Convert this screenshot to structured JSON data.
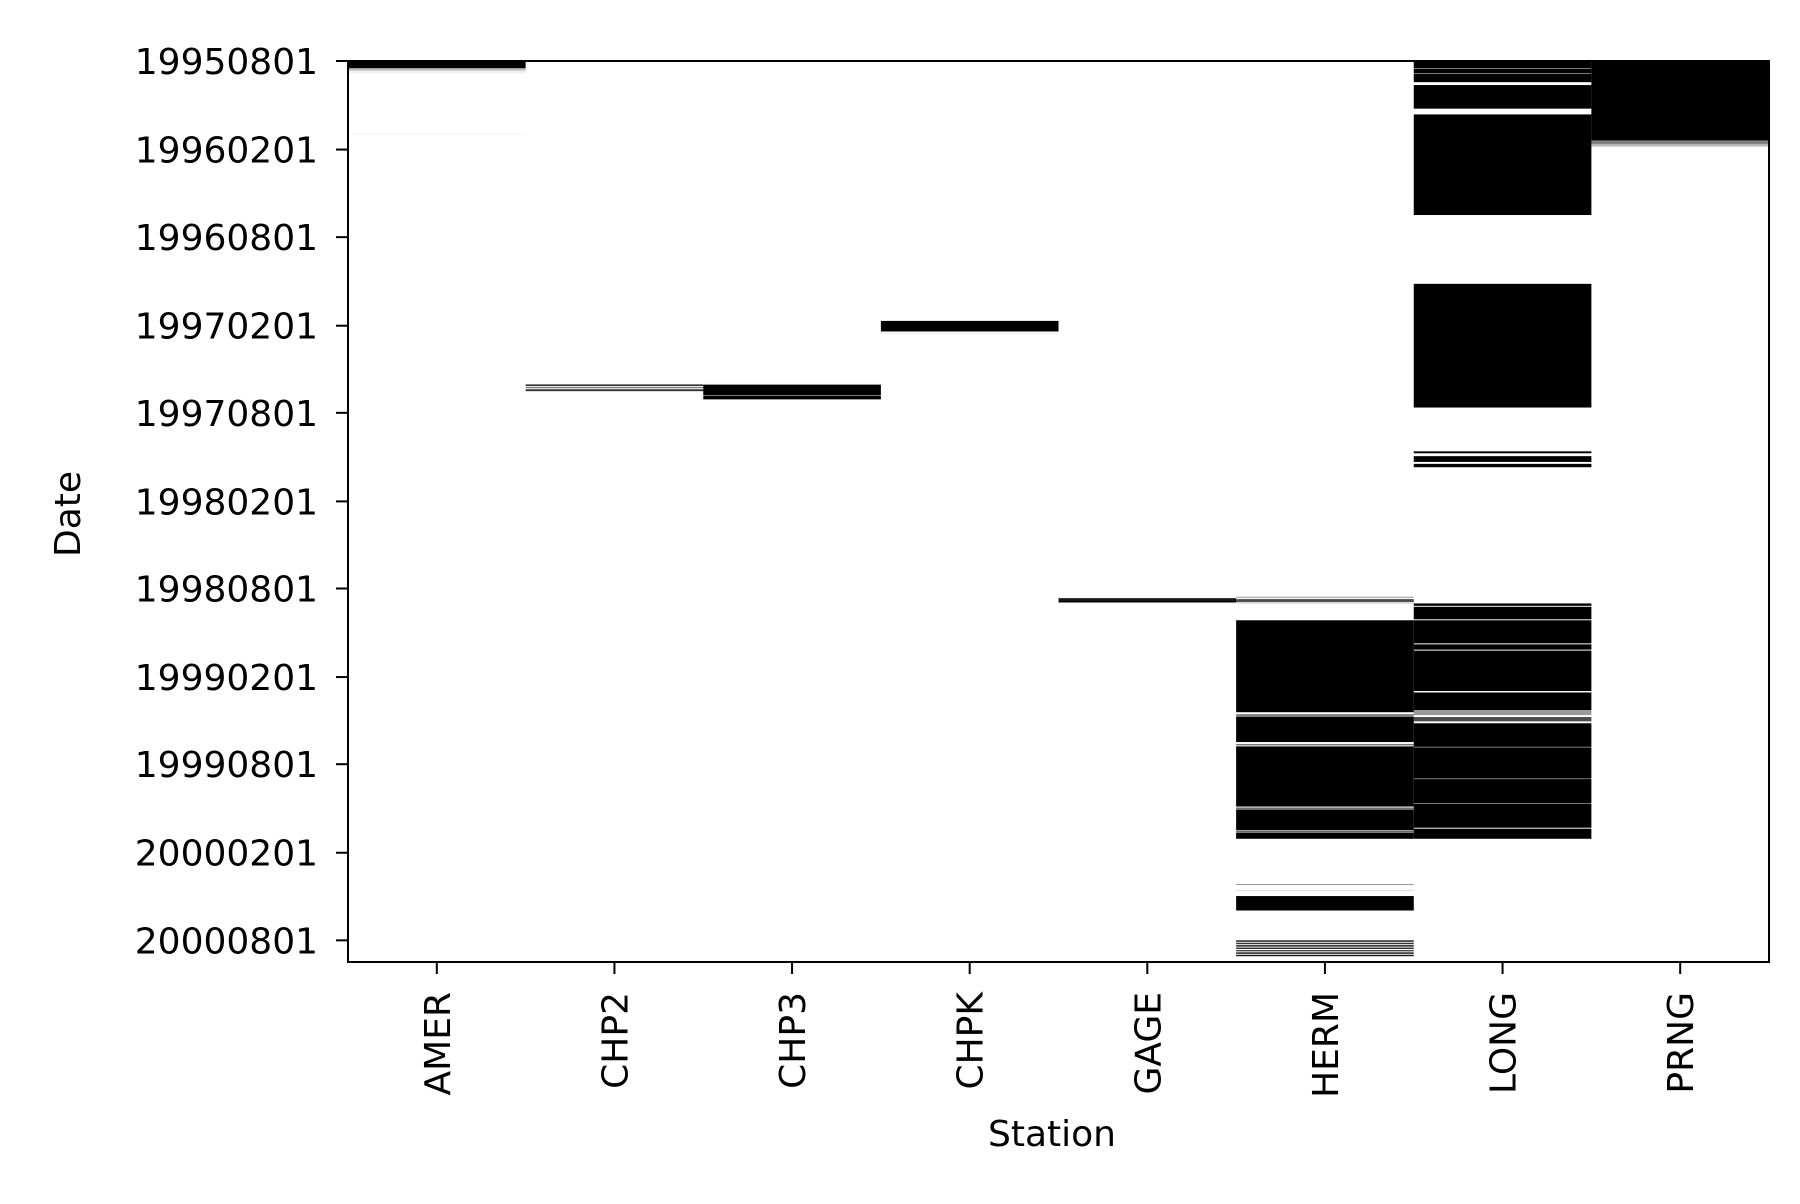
{
  "chart_data": {
    "type": "heatmap",
    "title": "",
    "xlabel": "Station",
    "ylabel": "Date",
    "categories": [
      "AMER",
      "CHP2",
      "CHP3",
      "CHPK",
      "GAGE",
      "HERM",
      "LONG",
      "PRNG"
    ],
    "y_ticks": [
      "19950801",
      "19960201",
      "19960801",
      "19970201",
      "19970801",
      "19980201",
      "19980801",
      "19990201",
      "19990801",
      "20000201",
      "20000801"
    ],
    "ylim": [
      "19950801",
      "20000915"
    ],
    "y_inverted": true,
    "grid": false,
    "legend": "none",
    "colors": {
      "present": "#000000",
      "absent": "#ffffff",
      "axis": "#000000"
    },
    "description_of_values": "black = data present for the station on that date",
    "series": [
      {
        "station": "AMER",
        "segments": [
          [
            "19950801",
            "19950815",
            1.0
          ],
          [
            "19950816",
            "19950820",
            0.25
          ],
          [
            "19950821",
            "19950826",
            0.06
          ],
          [
            "19951230",
            "19951231",
            0.04
          ]
        ]
      },
      {
        "station": "CHP2",
        "segments": [
          [
            "19970603",
            "19970605",
            0.9
          ],
          [
            "19970608",
            "19970610",
            0.5
          ],
          [
            "19970613",
            "19970616",
            0.8
          ]
        ]
      },
      {
        "station": "CHP3",
        "segments": [
          [
            "19970602",
            "19970603",
            0.35
          ],
          [
            "19970604",
            "19970624",
            1.0
          ],
          [
            "19970625",
            "19970626",
            0.5
          ],
          [
            "19970627",
            "19970703",
            1.0
          ]
        ]
      },
      {
        "station": "CHPK",
        "segments": [
          [
            "19970122",
            "19970212",
            1.0
          ],
          [
            "19970216",
            "19970217",
            0.08
          ]
        ]
      },
      {
        "station": "GAGE",
        "segments": [
          [
            "19980821",
            "19980825",
            0.9
          ],
          [
            "19980826",
            "19980829",
            1.0
          ]
        ]
      },
      {
        "station": "HERM",
        "segments": [
          [
            "19980818",
            "19980820",
            0.3
          ],
          [
            "19980823",
            "19980828",
            0.7
          ],
          [
            "19980830",
            "19980831",
            0.25
          ],
          [
            "19981006",
            "19990414",
            1.0
          ],
          [
            "19990419",
            "19990422",
            0.5
          ],
          [
            "19990424",
            "19990615",
            1.0
          ],
          [
            "19990620",
            "19990622",
            0.55
          ],
          [
            "19990625",
            "19991027",
            1.0
          ],
          [
            "19991030",
            "19991101",
            0.6
          ],
          [
            "19991103",
            "19991215",
            1.0
          ],
          [
            "19991217",
            "19991219",
            0.6
          ],
          [
            "19991221",
            "20000102",
            1.0
          ],
          [
            "20000406",
            "20000407",
            0.4
          ],
          [
            "20000418",
            "20000419",
            0.15
          ],
          [
            "20000501",
            "20000530",
            1.0
          ],
          [
            "20000801",
            "20000803",
            0.9
          ],
          [
            "20000806",
            "20000808",
            0.8
          ],
          [
            "20000811",
            "20000813",
            0.9
          ],
          [
            "20000816",
            "20000818",
            0.8
          ],
          [
            "20000821",
            "20000823",
            0.7
          ],
          [
            "20000826",
            "20000828",
            0.9
          ],
          [
            "20000831",
            "20000902",
            0.9
          ]
        ]
      },
      {
        "station": "LONG",
        "segments": [
          [
            "19950801",
            "19950815",
            1.0
          ],
          [
            "19950817",
            "19950825",
            1.0
          ],
          [
            "19950827",
            "19950913",
            1.0
          ],
          [
            "19950920",
            "19951107",
            1.0
          ],
          [
            "19951120",
            "19960519",
            1.0
          ],
          [
            "19960519",
            "19960615",
            1.0
          ],
          [
            "19961106",
            "19970720",
            1.0
          ],
          [
            "19971020",
            "19971023",
            1.0
          ],
          [
            "19971030",
            "19971110",
            1.0
          ],
          [
            "19971115",
            "19971121",
            1.0
          ],
          [
            "19980901",
            "19980905",
            1.0
          ],
          [
            "19980908",
            "19981003",
            1.0
          ],
          [
            "19981006",
            "19981122",
            1.0
          ],
          [
            "19981125",
            "19981205",
            1.0
          ],
          [
            "19981208",
            "19990301",
            1.0
          ],
          [
            "19990305",
            "19990410",
            1.0
          ],
          [
            "19990412",
            "19990420",
            0.4
          ],
          [
            "19990425",
            "19990503",
            0.7
          ],
          [
            "19990508",
            "19990625",
            1.0
          ],
          [
            "19990627",
            "19990830",
            1.0
          ],
          [
            "19990901",
            "19991020",
            1.0
          ],
          [
            "19991022",
            "19991210",
            1.0
          ],
          [
            "19991213",
            "20000102",
            1.0
          ]
        ]
      },
      {
        "station": "PRNG",
        "segments": [
          [
            "19950801",
            "19960112",
            1.0
          ],
          [
            "19960113",
            "19960120",
            0.5
          ],
          [
            "19960121",
            "19960125",
            0.25
          ]
        ]
      }
    ]
  }
}
